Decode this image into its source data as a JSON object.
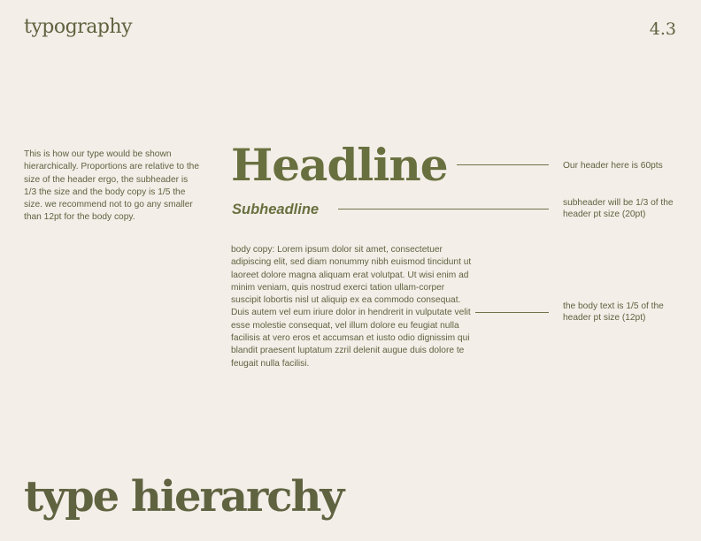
{
  "header": {
    "section_title": "typography",
    "page_number": "4.3"
  },
  "intro_text": "This is how our type would be shown hierarchically. Proportions are relative to the size of the header ergo, the subheader is 1/3 the size and the body copy is 1/5 the size. we recommend not to go any smaller than 12pt for the body copy.",
  "samples": {
    "headline": "Headline",
    "subheadline": "Subheadline",
    "body_copy": "body copy: Lorem ipsum dolor sit amet, consectetuer adipiscing elit, sed diam nonummy nibh euismod tincidunt ut laoreet dolore magna aliquam erat volutpat. Ut wisi enim ad minim veniam, quis nostrud exerci tation ullam-corper suscipit lobortis nisl ut aliquip ex ea commodo consequat. Duis autem vel eum iriure dolor in hendrerit in vulputate velit esse molestie consequat, vel illum dolore eu feugiat nulla facilisis at vero eros et accumsan et iusto odio dignissim qui blandit praesent luptatum zzril delenit augue duis dolore te feugait nulla facilisi."
  },
  "annotations": {
    "headline_note": "Our header here is 60pts",
    "subheadline_note": "subheader will be 1/3 of the header pt size (20pt)",
    "body_note": "the body text is 1/5 of the header pt size (12pt)"
  },
  "footer": {
    "title": "type hierarchy"
  },
  "colors": {
    "background": "#f3eee8",
    "accent": "#69703f",
    "text": "#5f6340"
  }
}
